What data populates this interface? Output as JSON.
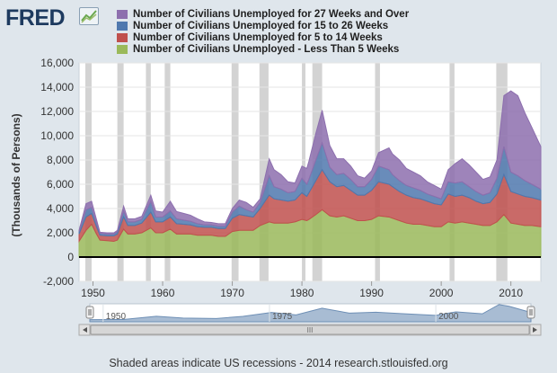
{
  "header": {
    "logo_text": "FRED"
  },
  "footer": {
    "note": "Shaded areas indicate US recessions - 2014 research.stlouisfed.org"
  },
  "navigator": {
    "labels": [
      "1950",
      "1975",
      "2000"
    ],
    "scroll_grip": "III"
  },
  "colors": {
    "purple": "#8d6fae",
    "blue": "#4f78ae",
    "red": "#c0504d",
    "green": "#9ab95a",
    "recession": "#d3d3d3",
    "plot_bg": "#ffffff",
    "page_bg": "#dfe6ec"
  },
  "chart_data": {
    "type": "area",
    "stacked": true,
    "title": "",
    "xlabel": "",
    "ylabel": "(Thousands of Persons)",
    "xlim": [
      1948,
      2014.3
    ],
    "ylim": [
      -2000,
      16000
    ],
    "y_ticks": [
      -2000,
      0,
      2000,
      4000,
      6000,
      8000,
      10000,
      12000,
      14000,
      16000
    ],
    "y_tick_labels": [
      "-2,000",
      "0",
      "2,000",
      "4,000",
      "6,000",
      "8,000",
      "10,000",
      "12,000",
      "14,000",
      "16,000"
    ],
    "x_ticks": [
      1950,
      1960,
      1970,
      1980,
      1990,
      2000,
      2010
    ],
    "x_tick_labels": [
      "1950",
      "1960",
      "1970",
      "1980",
      "1990",
      "2000",
      "2010"
    ],
    "recessions": [
      [
        1948.9,
        1949.8
      ],
      [
        1953.5,
        1954.4
      ],
      [
        1957.6,
        1958.3
      ],
      [
        1960.3,
        1961.1
      ],
      [
        1969.9,
        1970.9
      ],
      [
        1973.9,
        1975.2
      ],
      [
        1980.0,
        1980.5
      ],
      [
        1981.5,
        1982.9
      ],
      [
        1990.5,
        1991.2
      ],
      [
        2001.2,
        2001.9
      ],
      [
        2007.9,
        2009.5
      ]
    ],
    "x": [
      1948,
      1949,
      1949.8,
      1950.5,
      1951,
      1952,
      1953,
      1953.5,
      1954.4,
      1955,
      1956,
      1957,
      1958.3,
      1959,
      1960,
      1961.1,
      1962,
      1963,
      1964,
      1965,
      1966,
      1967,
      1968,
      1969,
      1970,
      1971,
      1972,
      1973,
      1974,
      1975.3,
      1976,
      1977,
      1978,
      1979,
      1980,
      1980.7,
      1981,
      1982,
      1982.9,
      1984,
      1985,
      1986,
      1987,
      1988,
      1989,
      1990,
      1991,
      1992.5,
      1993,
      1994,
      1995,
      1996,
      1997,
      1998,
      1999,
      2000,
      2001,
      2002,
      2003,
      2004,
      2005,
      2006,
      2007,
      2008,
      2009,
      2010,
      2011,
      2012,
      2013,
      2014.3
    ],
    "series": [
      {
        "name": "Number of Civilians Unemployed - Less Than 5 Weeks",
        "color": "#9ab95a",
        "values": [
          1300,
          2200,
          2700,
          1900,
          1400,
          1350,
          1300,
          1400,
          2300,
          1900,
          1900,
          2000,
          2400,
          2000,
          2000,
          2300,
          1900,
          1900,
          1900,
          1800,
          1800,
          1800,
          1700,
          1700,
          2100,
          2200,
          2200,
          2200,
          2600,
          2900,
          2800,
          2800,
          2800,
          2900,
          3100,
          3000,
          3100,
          3500,
          3900,
          3400,
          3300,
          3400,
          3200,
          3000,
          3000,
          3100,
          3400,
          3300,
          3200,
          3000,
          2800,
          2700,
          2700,
          2600,
          2500,
          2500,
          2900,
          2800,
          2900,
          2800,
          2700,
          2600,
          2600,
          2900,
          3500,
          2800,
          2700,
          2600,
          2600,
          2500
        ]
      },
      {
        "name": "Number of Civilians Unemployed for 5 to 14 Weeks",
        "color": "#c0504d",
        "values": [
          600,
          1100,
          900,
          600,
          400,
          400,
          450,
          500,
          1000,
          700,
          700,
          800,
          1300,
          900,
          900,
          1000,
          850,
          800,
          750,
          700,
          650,
          650,
          650,
          650,
          1100,
          1300,
          1200,
          1100,
          1400,
          2200,
          2000,
          1900,
          1800,
          1800,
          2200,
          2000,
          2200,
          2800,
          3300,
          2800,
          2500,
          2500,
          2300,
          2100,
          2100,
          2400,
          2800,
          2700,
          2600,
          2400,
          2300,
          2200,
          2100,
          2000,
          1900,
          1800,
          2300,
          2200,
          2200,
          2100,
          1900,
          1800,
          1900,
          2300,
          3300,
          2600,
          2500,
          2400,
          2300,
          2200
        ]
      },
      {
        "name": "Number of Civilians Unemployed for 15 to 26 Weeks",
        "color": "#4f78ae",
        "values": [
          200,
          600,
          500,
          300,
          150,
          150,
          150,
          200,
          500,
          300,
          300,
          300,
          900,
          400,
          400,
          500,
          400,
          350,
          300,
          250,
          200,
          200,
          200,
          200,
          500,
          700,
          500,
          400,
          500,
          1600,
          1000,
          900,
          700,
          700,
          1200,
          1000,
          1100,
          1700,
          2200,
          1200,
          1000,
          1000,
          900,
          700,
          700,
          900,
          1300,
          1200,
          1000,
          900,
          800,
          800,
          700,
          600,
          600,
          500,
          1000,
          1100,
          1100,
          900,
          800,
          700,
          800,
          1300,
          2300,
          1600,
          1500,
          1300,
          1100,
          900
        ]
      },
      {
        "name": "Number of Civilians Unemployed for 27 Weeks and Over",
        "color": "#8d6fae",
        "values": [
          100,
          500,
          500,
          300,
          100,
          100,
          100,
          100,
          400,
          250,
          250,
          250,
          500,
          500,
          400,
          800,
          600,
          550,
          500,
          400,
          250,
          200,
          200,
          200,
          300,
          500,
          600,
          400,
          300,
          1400,
          1400,
          1200,
          900,
          700,
          1000,
          1300,
          1500,
          2200,
          2700,
          1800,
          1300,
          1200,
          1100,
          900,
          700,
          700,
          1100,
          1800,
          1700,
          1700,
          1400,
          1300,
          1200,
          1000,
          900,
          800,
          1000,
          1600,
          1900,
          1800,
          1600,
          1300,
          1300,
          1500,
          4200,
          6700,
          6600,
          5600,
          4700,
          3500
        ]
      }
    ]
  },
  "navigator_series": {
    "x": [
      1948,
      1953,
      1958,
      1962,
      1967,
      1971,
      1975.3,
      1979,
      1982.9,
      1987,
      1991,
      1995,
      2000,
      2003,
      2007,
      2009.5,
      2011,
      2014.3
    ],
    "values": [
      1900,
      2000,
      4900,
      3300,
      2900,
      4800,
      8300,
      6100,
      12100,
      7700,
      8500,
      7200,
      5700,
      8800,
      7100,
      15300,
      13800,
      8300
    ]
  }
}
